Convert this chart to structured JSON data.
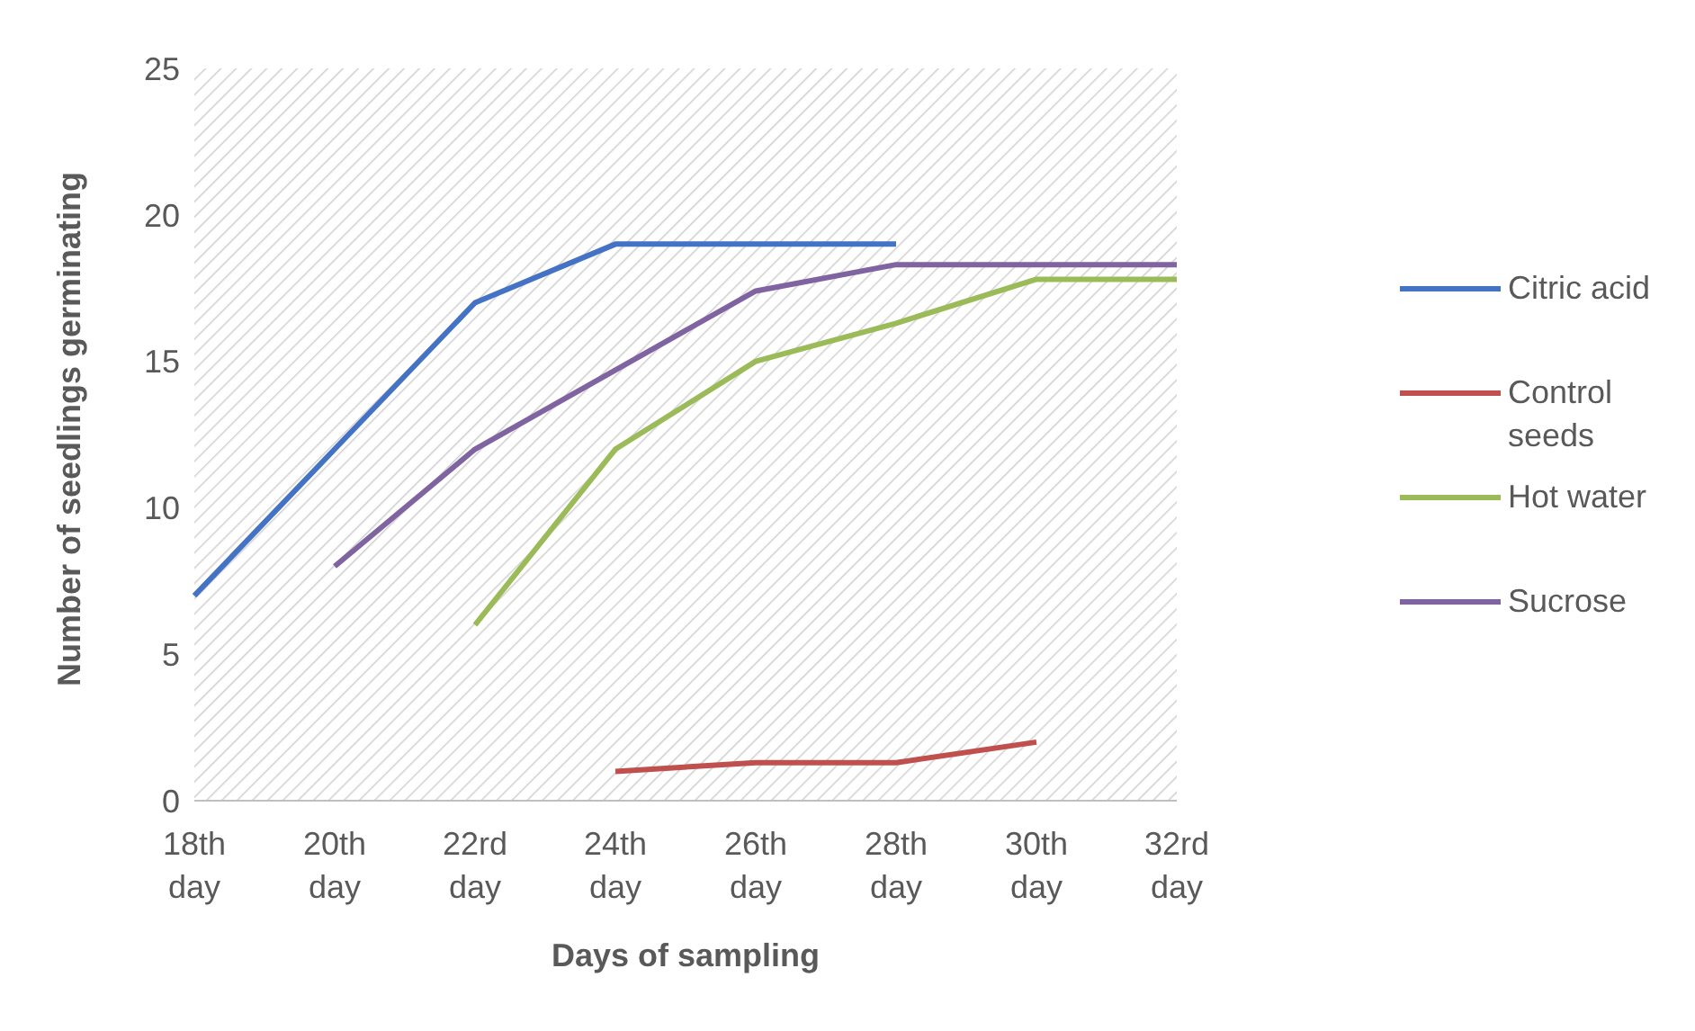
{
  "chart_data": {
    "type": "line",
    "xlabel": "Days of sampling",
    "ylabel": "Number of seedlings germinating",
    "categories": [
      "18th day",
      "20th day",
      "22rd day",
      "24th day",
      "26th day",
      "28th day",
      "30th day",
      "32rd day"
    ],
    "series": [
      {
        "name": "Citric acid",
        "color": "#4472c4",
        "values": [
          7,
          12,
          17,
          19,
          19,
          19,
          null,
          null
        ]
      },
      {
        "name": "Control seeds",
        "color": "#c0504d",
        "values": [
          null,
          null,
          null,
          1,
          1.3,
          1.3,
          2,
          null
        ]
      },
      {
        "name": "Hot water",
        "color": "#9bbb59",
        "values": [
          null,
          null,
          6,
          12,
          15,
          16.3,
          17.8,
          17.8
        ]
      },
      {
        "name": "Sucrose",
        "color": "#8064a2",
        "values": [
          null,
          8,
          12,
          14.7,
          17.4,
          18.3,
          18.3,
          18.3
        ]
      }
    ],
    "ylim": [
      0,
      25
    ],
    "yticks": [
      0,
      5,
      10,
      15,
      20,
      25
    ],
    "grid": false,
    "legend": "right",
    "marker": "none",
    "line_style": "solid"
  }
}
